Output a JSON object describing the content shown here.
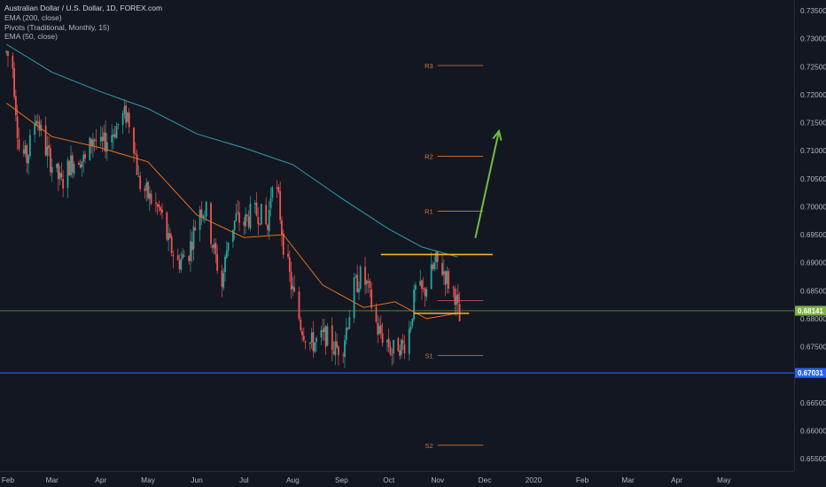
{
  "chart_data": {
    "type": "candlestick",
    "title": "Australian Dollar / U.S. Dollar, 1D, FOREX.com",
    "indicators": [
      "EMA (200, close)",
      "Pivots (Traditional, Monthly, 15)",
      "EMA (50, close)"
    ],
    "x_ticks": [
      "Feb",
      "Mar",
      "Apr",
      "May",
      "Jun",
      "Jul",
      "Aug",
      "Sep",
      "Oct",
      "Nov",
      "Dec",
      "2020",
      "Feb",
      "Mar",
      "Apr",
      "May"
    ],
    "y_ticks": [
      "0.73500",
      "0.73000",
      "0.72500",
      "0.72000",
      "0.71500",
      "0.71000",
      "0.70500",
      "0.70000",
      "0.69500",
      "0.69000",
      "0.68500",
      "0.68000",
      "0.67500",
      "0.67000",
      "0.66500",
      "0.66000",
      "0.65500"
    ],
    "ylim": [
      0.6525,
      0.7365
    ],
    "price_path": [
      [
        "2019-01-31",
        0.7275
      ],
      [
        "2019-02-04",
        0.725
      ],
      [
        "2019-02-08",
        0.7105
      ],
      [
        "2019-02-13",
        0.7085
      ],
      [
        "2019-02-19",
        0.7165
      ],
      [
        "2019-02-24",
        0.711
      ],
      [
        "2019-03-01",
        0.7075
      ],
      [
        "2019-03-07",
        0.704
      ],
      [
        "2019-03-12",
        0.7075
      ],
      [
        "2019-03-18",
        0.709
      ],
      [
        "2019-03-22",
        0.708
      ],
      [
        "2019-03-27",
        0.7125
      ],
      [
        "2019-04-01",
        0.7105
      ],
      [
        "2019-04-08",
        0.713
      ],
      [
        "2019-04-15",
        0.716
      ],
      [
        "2019-04-18",
        0.7165
      ],
      [
        "2019-04-22",
        0.7115
      ],
      [
        "2019-04-25",
        0.7045
      ],
      [
        "2019-05-02",
        0.7015
      ],
      [
        "2019-05-09",
        0.699
      ],
      [
        "2019-05-14",
        0.6935
      ],
      [
        "2019-05-20",
        0.69
      ],
      [
        "2019-05-27",
        0.692
      ],
      [
        "2019-06-03",
        0.7
      ],
      [
        "2019-06-07",
        0.699
      ],
      [
        "2019-06-12",
        0.692
      ],
      [
        "2019-06-17",
        0.686
      ],
      [
        "2019-06-21",
        0.6945
      ],
      [
        "2019-06-26",
        0.698
      ],
      [
        "2019-07-01",
        0.697
      ],
      [
        "2019-07-05",
        0.6985
      ],
      [
        "2019-07-11",
        0.699
      ],
      [
        "2019-07-16",
        0.696
      ],
      [
        "2019-07-19",
        0.7055
      ],
      [
        "2019-07-23",
        0.701
      ],
      [
        "2019-07-26",
        0.6935
      ],
      [
        "2019-07-31",
        0.686
      ],
      [
        "2019-08-06",
        0.679
      ],
      [
        "2019-08-12",
        0.6755
      ],
      [
        "2019-08-17",
        0.676
      ],
      [
        "2019-08-22",
        0.677
      ],
      [
        "2019-08-28",
        0.6745
      ],
      [
        "2019-09-02",
        0.6755
      ],
      [
        "2019-09-09",
        0.6855
      ],
      [
        "2019-09-13",
        0.6875
      ],
      [
        "2019-09-17",
        0.686
      ],
      [
        "2019-09-24",
        0.678
      ],
      [
        "2019-09-30",
        0.676
      ],
      [
        "2019-10-03",
        0.674
      ],
      [
        "2019-10-07",
        0.6755
      ],
      [
        "2019-10-10",
        0.675
      ],
      [
        "2019-10-14",
        0.678
      ],
      [
        "2019-10-18",
        0.685
      ],
      [
        "2019-10-23",
        0.6845
      ],
      [
        "2019-10-28",
        0.688
      ],
      [
        "2019-10-31",
        0.69
      ],
      [
        "2019-11-05",
        0.6885
      ],
      [
        "2019-11-08",
        0.6865
      ],
      [
        "2019-11-12",
        0.6845
      ],
      [
        "2019-11-15",
        0.6795
      ]
    ],
    "ema200_path": [
      [
        "2019-01-31",
        0.729
      ],
      [
        "2019-03-01",
        0.724
      ],
      [
        "2019-04-01",
        0.7205
      ],
      [
        "2019-05-01",
        0.7175
      ],
      [
        "2019-06-01",
        0.713
      ],
      [
        "2019-07-01",
        0.7105
      ],
      [
        "2019-08-01",
        0.7075
      ],
      [
        "2019-09-01",
        0.7015
      ],
      [
        "2019-10-01",
        0.696
      ],
      [
        "2019-10-22",
        0.6928
      ],
      [
        "2019-11-14",
        0.691
      ]
    ],
    "ema50_path": [
      [
        "2019-01-31",
        0.7185
      ],
      [
        "2019-03-01",
        0.7125
      ],
      [
        "2019-04-01",
        0.7105
      ],
      [
        "2019-05-01",
        0.708
      ],
      [
        "2019-06-01",
        0.6985
      ],
      [
        "2019-07-01",
        0.6945
      ],
      [
        "2019-07-26",
        0.695
      ],
      [
        "2019-08-20",
        0.686
      ],
      [
        "2019-09-15",
        0.682
      ],
      [
        "2019-10-05",
        0.683
      ],
      [
        "2019-10-25",
        0.68
      ],
      [
        "2019-11-14",
        0.681
      ]
    ],
    "pivots": [
      {
        "label": "R3",
        "value": 0.7252
      },
      {
        "label": "R2",
        "value": 0.709
      },
      {
        "label": "R1",
        "value": 0.6992
      },
      {
        "label": "S1",
        "value": 0.6734
      },
      {
        "label": "S2",
        "value": 0.6574
      }
    ],
    "pivot_span": [
      "2019-11-01",
      "2019-11-30"
    ],
    "pivot_point": 0.6832,
    "resistance_line": {
      "value": 0.69145,
      "from": "2019-09-26",
      "to": "2019-12-06"
    },
    "support_line": {
      "value": 0.68095,
      "from": "2019-10-17",
      "to": "2019-11-21"
    },
    "forecast_arrow": {
      "from": [
        "2019-11-25",
        0.6944
      ],
      "to": [
        "2019-12-10",
        0.7135
      ]
    },
    "horizontal_levels": [
      {
        "value": 0.68141,
        "label": "0.68141",
        "color": "#7cb342"
      },
      {
        "value": 0.67031,
        "label": "0.67031",
        "color": "#2962ff"
      }
    ],
    "colors": {
      "up": "#26a69a",
      "down": "#ef5350",
      "ema200": "#2e9fb0",
      "ema50": "#e8711f",
      "pivot": "#d17a3a",
      "drawn_line": "#f5b52c",
      "arrow": "#6fbf3f",
      "axis_text": "#b2b5be",
      "background": "#131722"
    }
  }
}
